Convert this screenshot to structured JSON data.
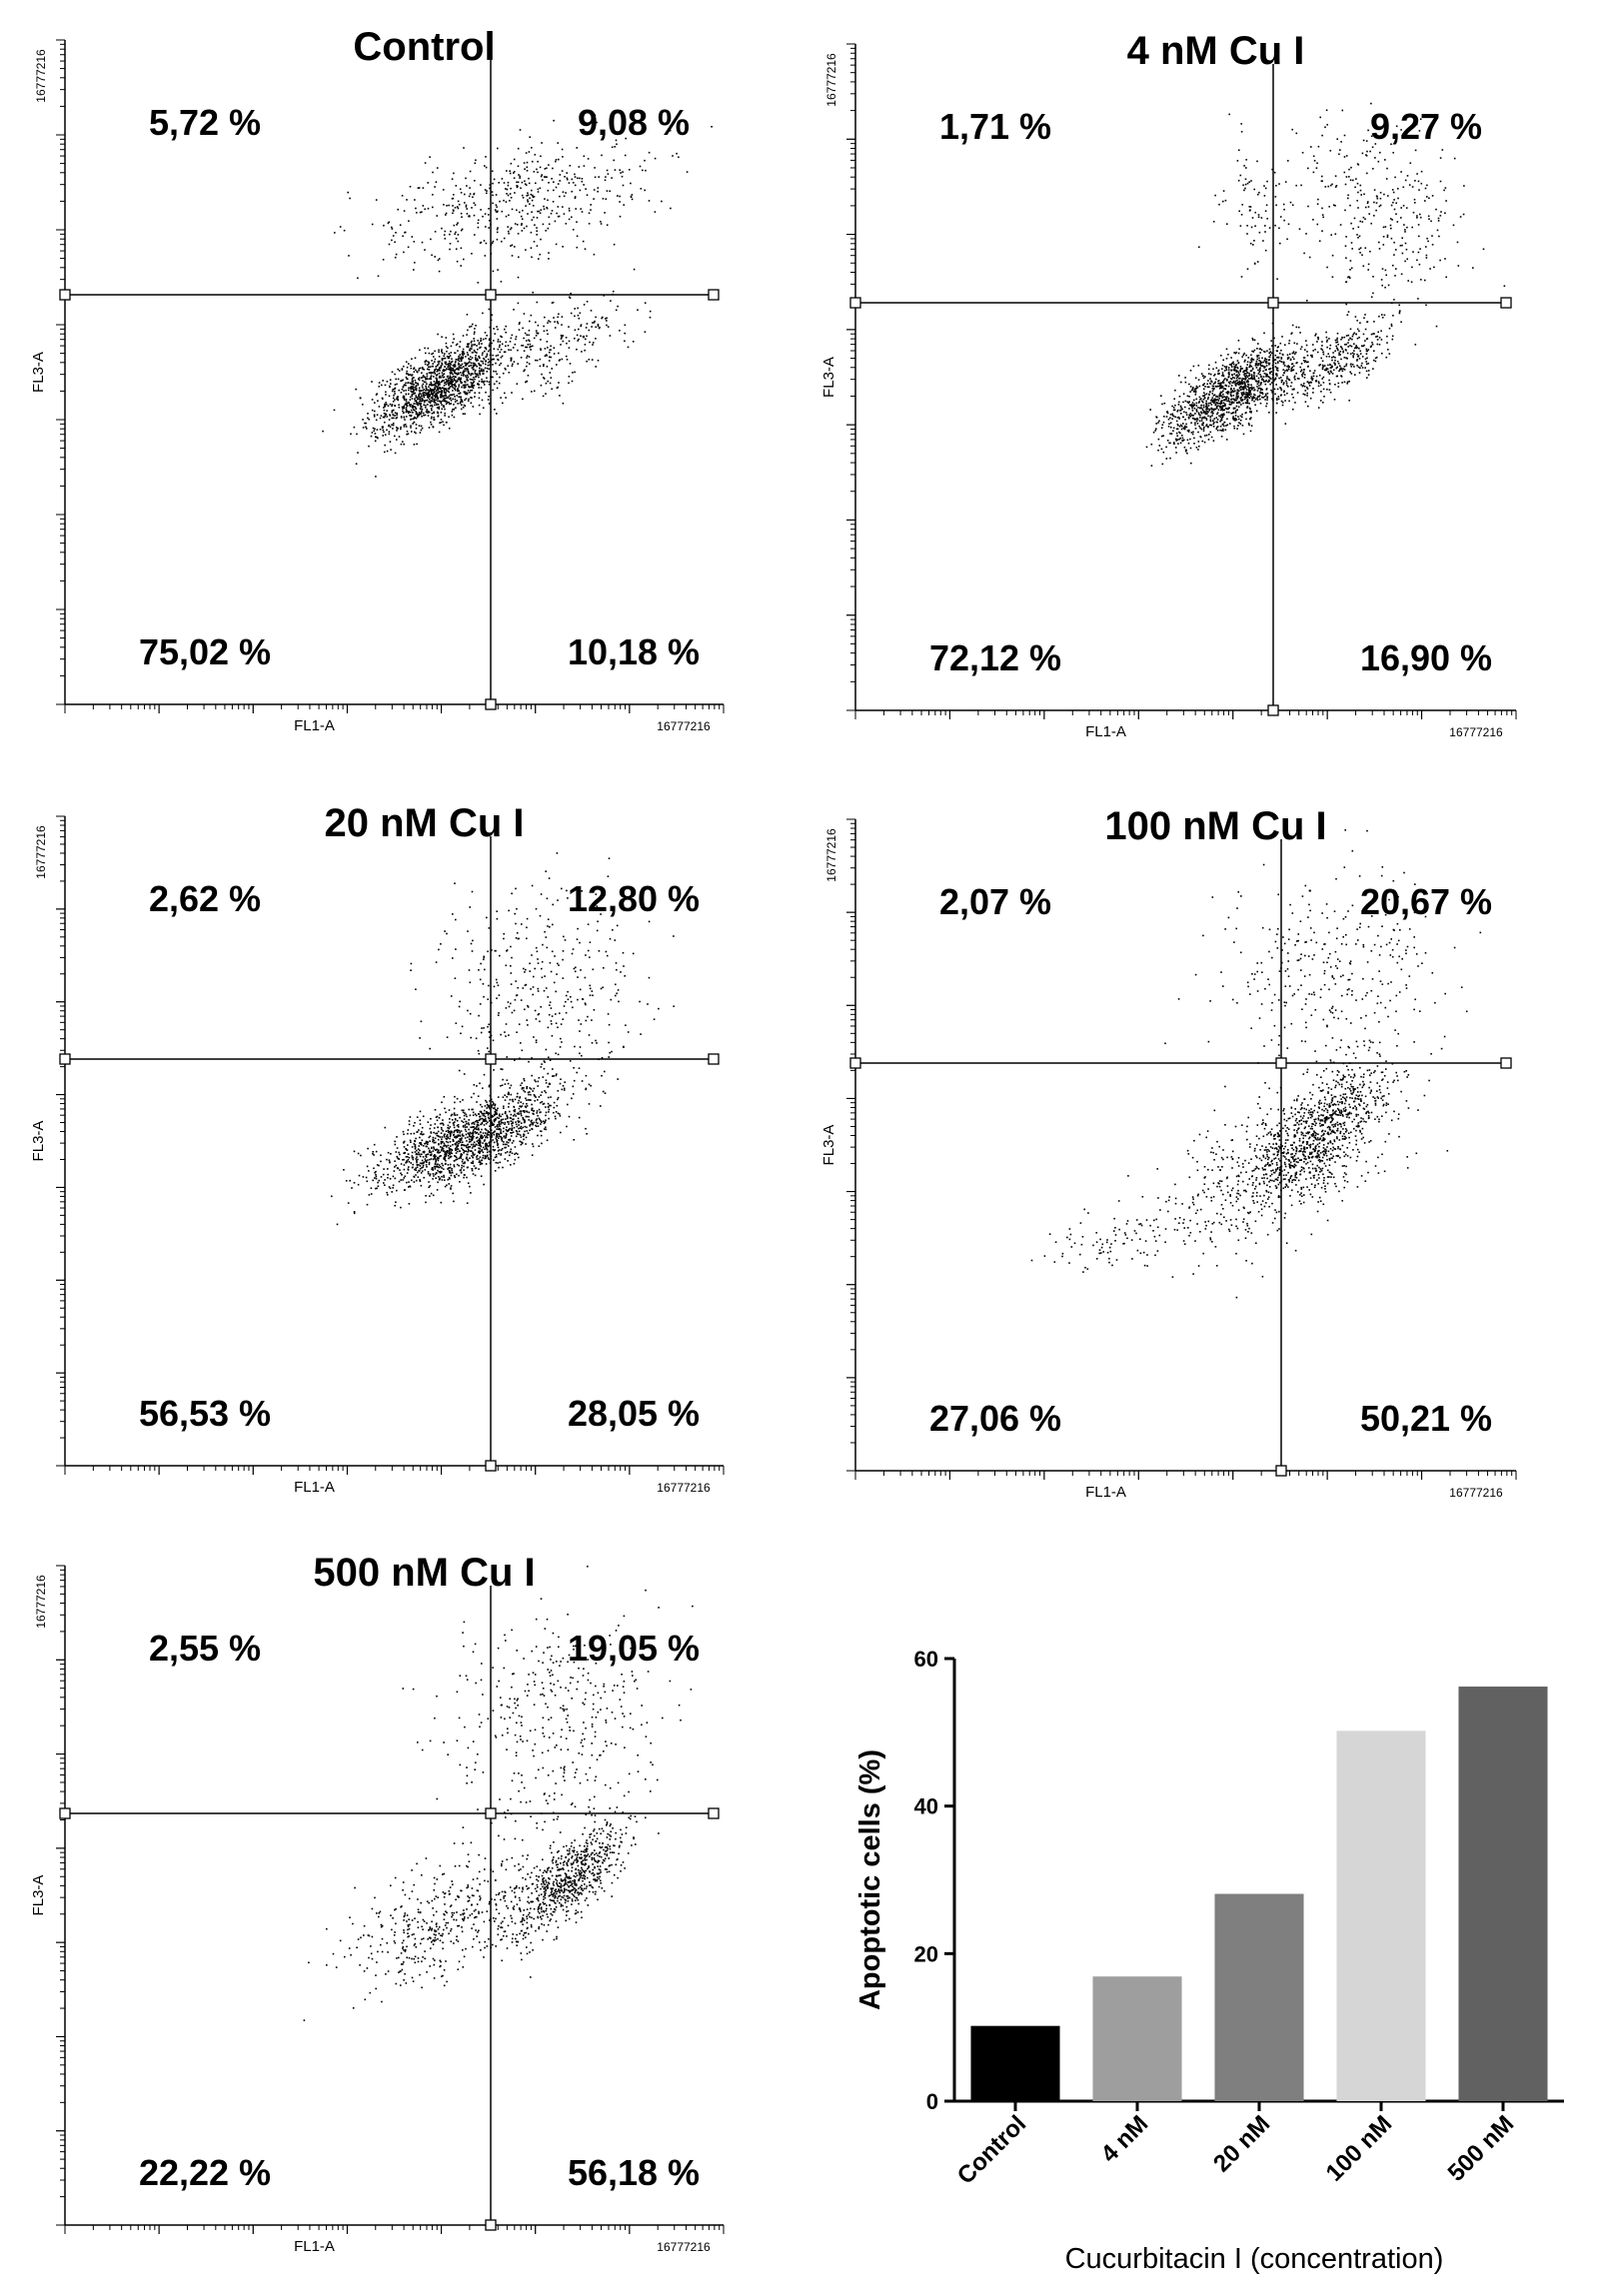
{
  "chart_data": [
    {
      "type": "scatter",
      "title": "Control",
      "xlabel": "FL1-A",
      "ylabel": "FL3-A",
      "axis_max_label": "16777216",
      "axis_scale": "log",
      "xlim": [
        1,
        16777216
      ],
      "ylim": [
        1,
        16777216
      ],
      "quadrant_percent_labels": {
        "upper_left": "5,72 %",
        "upper_right": "9,08 %",
        "lower_left": "75,02 %",
        "lower_right": "10,18 %"
      }
    },
    {
      "type": "scatter",
      "title": "4 nM Cu I",
      "xlabel": "FL1-A",
      "ylabel": "FL3-A",
      "axis_max_label": "16777216",
      "axis_scale": "log",
      "xlim": [
        1,
        16777216
      ],
      "ylim": [
        1,
        16777216
      ],
      "quadrant_percent_labels": {
        "upper_left": "1,71 %",
        "upper_right": "9,27 %",
        "lower_left": "72,12 %",
        "lower_right": "16,90 %"
      }
    },
    {
      "type": "scatter",
      "title": "20 nM Cu I",
      "xlabel": "FL1-A",
      "ylabel": "FL3-A",
      "axis_max_label": "16777216",
      "axis_scale": "log",
      "xlim": [
        1,
        16777216
      ],
      "ylim": [
        1,
        16777216
      ],
      "quadrant_percent_labels": {
        "upper_left": "2,62 %",
        "upper_right": "12,80 %",
        "lower_left": "56,53 %",
        "lower_right": "28,05 %"
      }
    },
    {
      "type": "scatter",
      "title": "100 nM Cu I",
      "xlabel": "FL1-A",
      "ylabel": "FL3-A",
      "axis_max_label": "16777216",
      "axis_scale": "log",
      "xlim": [
        1,
        16777216
      ],
      "ylim": [
        1,
        16777216
      ],
      "quadrant_percent_labels": {
        "upper_left": "2,07 %",
        "upper_right": "20,67 %",
        "lower_left": "27,06 %",
        "lower_right": "50,21 %"
      }
    },
    {
      "type": "scatter",
      "title": "500 nM Cu I",
      "xlabel": "FL1-A",
      "ylabel": "FL3-A",
      "axis_max_label": "16777216",
      "axis_scale": "log",
      "xlim": [
        1,
        16777216
      ],
      "ylim": [
        1,
        16777216
      ],
      "quadrant_percent_labels": {
        "upper_left": "2,55 %",
        "upper_right": "19,05 %",
        "lower_left": "22,22 %",
        "lower_right": "56,18 %"
      }
    },
    {
      "type": "bar",
      "title": "",
      "categories": [
        "Control",
        "4 nM",
        "20 nM",
        "100 nM",
        "500 nM"
      ],
      "values": [
        10.2,
        16.9,
        28.1,
        50.2,
        56.2
      ],
      "colors": [
        "#000000",
        "#9e9e9e",
        "#7f7f7f",
        "#d6d6d6",
        "#616161"
      ],
      "xlabel": "Cucurbitacin I (concentration)",
      "ylabel": "Apoptotic cells (%)",
      "yticks": [
        "0",
        "20",
        "40",
        "60"
      ],
      "ylim": [
        0,
        60
      ],
      "grid": false
    }
  ]
}
